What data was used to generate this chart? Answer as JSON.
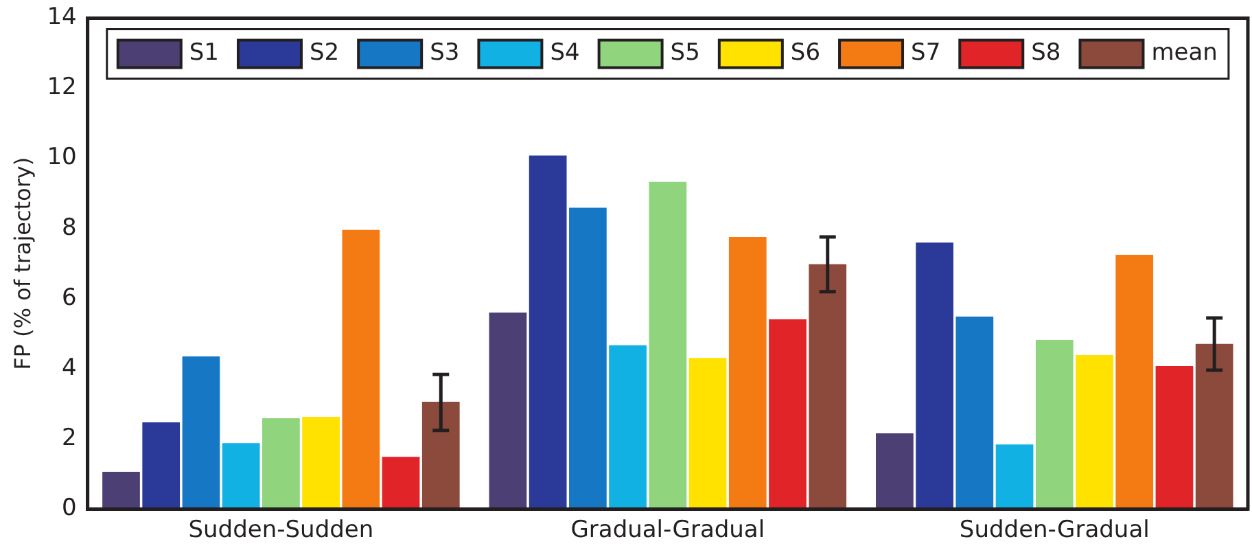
{
  "chart_data": {
    "type": "bar",
    "ylabel": "FP (% of trajectory)",
    "categories": [
      "Sudden-Sudden",
      "Gradual-Gradual",
      "Sudden-Gradual"
    ],
    "series": [
      {
        "name": "S1",
        "color": "#4c3f74",
        "values": [
          1.06,
          5.6,
          2.16
        ]
      },
      {
        "name": "S2",
        "color": "#2b3a98",
        "values": [
          2.47,
          10.08,
          7.6
        ]
      },
      {
        "name": "S3",
        "color": "#1677c4",
        "values": [
          4.35,
          8.59,
          5.49
        ]
      },
      {
        "name": "S4",
        "color": "#11b1e4",
        "values": [
          1.88,
          4.67,
          1.84
        ]
      },
      {
        "name": "S5",
        "color": "#90d47e",
        "values": [
          2.59,
          9.33,
          4.82
        ]
      },
      {
        "name": "S6",
        "color": "#ffe200",
        "values": [
          2.63,
          4.31,
          4.39
        ]
      },
      {
        "name": "S7",
        "color": "#f47a14",
        "values": [
          7.96,
          7.76,
          7.25
        ]
      },
      {
        "name": "S8",
        "color": "#e12427",
        "values": [
          1.49,
          5.41,
          4.08
        ]
      },
      {
        "name": "mean",
        "color": "#8b4a3c",
        "values": [
          3.06,
          6.98,
          4.71
        ],
        "errors": [
          [
            2.24,
            3.84
          ],
          [
            6.2,
            7.76
          ],
          [
            3.96,
            5.45
          ]
        ]
      }
    ],
    "ylim": [
      0,
      14
    ],
    "yticks": [
      0,
      2,
      4,
      6,
      8,
      10,
      12,
      14
    ],
    "grid": false,
    "legend": "top"
  }
}
